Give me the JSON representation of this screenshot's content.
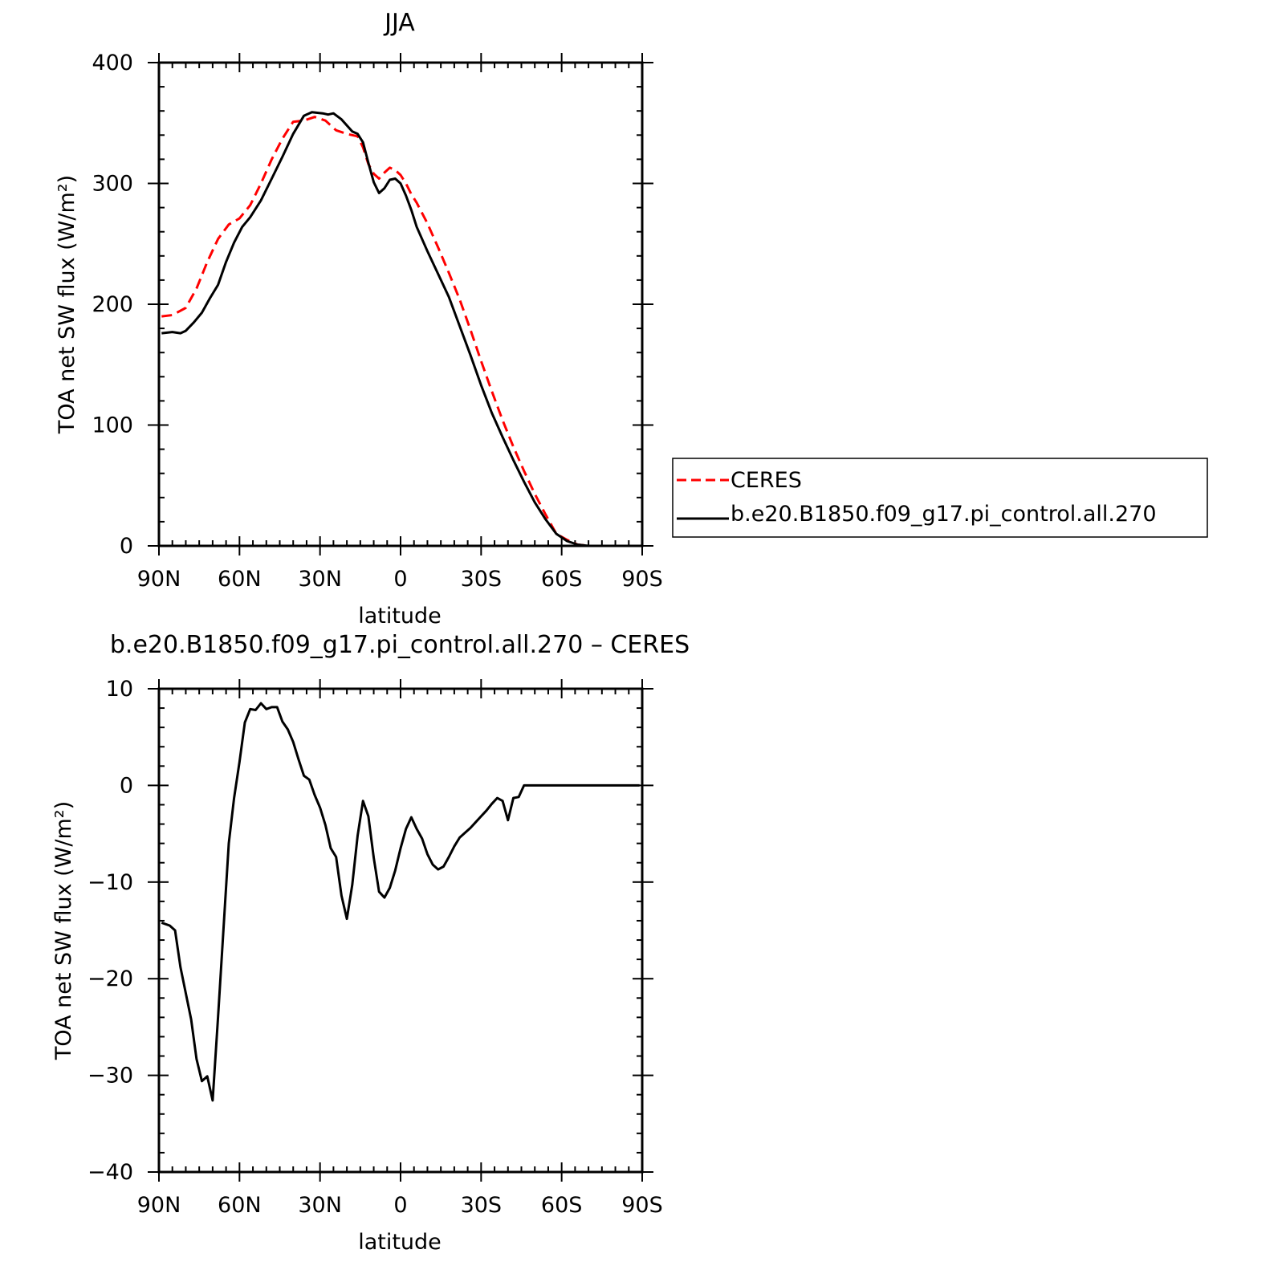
{
  "colors": {
    "ceres": "#ff0000",
    "model": "#000000",
    "axes": "#000000"
  },
  "chart_data": [
    {
      "type": "line",
      "title": "JJA",
      "xlabel": "latitude",
      "ylabel": "TOA net SW flux (W/m²)",
      "x_axis_direction": "north-to-south (90N on left, 90S on right)",
      "xlim": [
        90,
        -90
      ],
      "ylim": [
        0,
        400
      ],
      "xticks": [
        90,
        60,
        30,
        0,
        -30,
        -60,
        -90
      ],
      "xtick_labels": [
        "90N",
        "60N",
        "30N",
        "0",
        "30S",
        "60S",
        "90S"
      ],
      "yticks": [
        0,
        100,
        200,
        300,
        400
      ],
      "ytick_labels": [
        "0",
        "100",
        "200",
        "300",
        "400"
      ],
      "legend": {
        "placement": "right, outside plot",
        "entries": [
          "CERES",
          "b.e20.B1850.f09_g17.pi_control.all.270"
        ]
      },
      "series": [
        {
          "name": "CERES",
          "style": "dashed",
          "color": "#ff0000",
          "x": [
            89,
            85,
            80,
            76,
            72,
            68,
            64,
            60,
            56,
            52,
            48,
            44,
            40,
            36,
            32,
            28,
            24,
            20,
            16,
            14,
            12,
            10,
            8,
            6,
            4,
            2,
            0,
            -2,
            -4,
            -6,
            -10,
            -14,
            -18,
            -22,
            -26,
            -30,
            -34,
            -38,
            -42,
            -46,
            -50,
            -54,
            -58,
            -62,
            -66,
            -70,
            -74,
            -78,
            -82,
            -86,
            -89
          ],
          "y": [
            190,
            191,
            197,
            213,
            235,
            254,
            266,
            271,
            282,
            300,
            320,
            337,
            351,
            352,
            355,
            352,
            344,
            341,
            339,
            330,
            316,
            308,
            304,
            309,
            313,
            311,
            307,
            300,
            291,
            284,
            267,
            247,
            226,
            204,
            179,
            153,
            128,
            104,
            82,
            62,
            43,
            26,
            10,
            5,
            1,
            0,
            0,
            0,
            0,
            0,
            0
          ]
        },
        {
          "name": "b.e20.B1850.f09_g17.pi_control.all.270",
          "style": "solid",
          "color": "#000000",
          "x": [
            89,
            85,
            82,
            80,
            77,
            74,
            71,
            68,
            65,
            62,
            59,
            56,
            52,
            48,
            44,
            40,
            36,
            33,
            29,
            27,
            25,
            22,
            20,
            18,
            16,
            14,
            12,
            10,
            8,
            6,
            4,
            2,
            0,
            -2,
            -4,
            -6,
            -10,
            -14,
            -18,
            -22,
            -26,
            -30,
            -34,
            -38,
            -42,
            -46,
            -50,
            -54,
            -58,
            -62,
            -66,
            -70,
            -74,
            -78,
            -82,
            -86,
            -89
          ],
          "y": [
            176,
            177,
            176,
            178,
            185,
            193,
            205,
            216,
            235,
            251,
            264,
            272,
            286,
            304,
            322,
            341,
            356,
            359,
            358,
            357,
            358,
            353,
            348,
            343,
            341,
            334,
            317,
            301,
            292,
            296,
            303,
            304,
            300,
            290,
            278,
            264,
            244,
            225,
            206,
            182,
            158,
            133,
            110,
            90,
            71,
            53,
            36,
            22,
            10,
            4,
            1,
            0,
            0,
            0,
            0,
            0,
            0
          ]
        }
      ]
    },
    {
      "type": "line",
      "title": "b.e20.B1850.f09_g17.pi_control.all.270 – CERES",
      "xlabel": "latitude",
      "ylabel": "TOA net SW flux (W/m²)",
      "xlim": [
        90,
        -90
      ],
      "ylim": [
        -40,
        10
      ],
      "xticks": [
        90,
        60,
        30,
        0,
        -30,
        -60,
        -90
      ],
      "xtick_labels": [
        "90N",
        "60N",
        "30N",
        "0",
        "30S",
        "60S",
        "90S"
      ],
      "yticks": [
        10,
        0,
        -10,
        -20,
        -30,
        -40
      ],
      "ytick_labels": [
        "10",
        "0",
        "−10",
        "−20",
        "−30",
        "−40"
      ],
      "series": [
        {
          "color": "#000000",
          "style": "solid",
          "x": [
            89,
            86,
            84,
            82,
            78,
            76,
            74,
            72,
            70,
            68,
            66,
            64,
            62,
            60,
            58,
            56,
            54,
            52,
            50,
            48,
            46,
            44,
            42,
            40,
            38,
            36,
            34,
            32,
            30,
            28,
            26,
            24,
            22,
            20,
            18,
            16,
            14,
            12,
            10,
            8,
            6,
            4,
            2,
            0,
            -2,
            -4,
            -6,
            -8,
            -10,
            -12,
            -14,
            -16,
            -18,
            -20,
            -22,
            -24,
            -26,
            -28,
            -30,
            -32,
            -34,
            -36,
            -38,
            -40,
            -42,
            -44,
            -46,
            -48,
            -50,
            -52,
            -54,
            -56,
            -58,
            -60,
            -62,
            -64,
            -66,
            -68,
            -70,
            -72,
            -74,
            -76,
            -78,
            -80,
            -82,
            -84,
            -86,
            -88,
            -89
          ],
          "y": [
            -14.2,
            -14.5,
            -15,
            -18.8,
            -24.2,
            -28.3,
            -30.6,
            -30.1,
            -32.6,
            -24,
            -15,
            -6,
            -1.3,
            2.4,
            6.5,
            7.9,
            7.8,
            8.5,
            7.9,
            8.1,
            8.1,
            6.6,
            5.8,
            4.5,
            2.7,
            1,
            0.6,
            -1,
            -2.3,
            -4.1,
            -6.5,
            -7.4,
            -11.4,
            -13.8,
            -10.3,
            -5.2,
            -1.6,
            -3.2,
            -7.5,
            -11,
            -11.6,
            -10.6,
            -8.8,
            -6.5,
            -4.5,
            -3.3,
            -4.5,
            -5.5,
            -7.1,
            -8.2,
            -8.7,
            -8.4,
            -7.4,
            -6.3,
            -5.4,
            -4.9,
            -4.4,
            -3.8,
            -3.2,
            -2.6,
            -1.9,
            -1.3,
            -1.6,
            -3.6,
            -1.3,
            -1.2,
            0,
            0,
            0,
            0,
            0,
            0,
            0,
            0,
            0,
            0,
            0,
            0,
            0,
            0,
            0,
            0,
            0,
            0,
            0,
            0,
            0,
            0,
            0
          ]
        }
      ]
    }
  ]
}
